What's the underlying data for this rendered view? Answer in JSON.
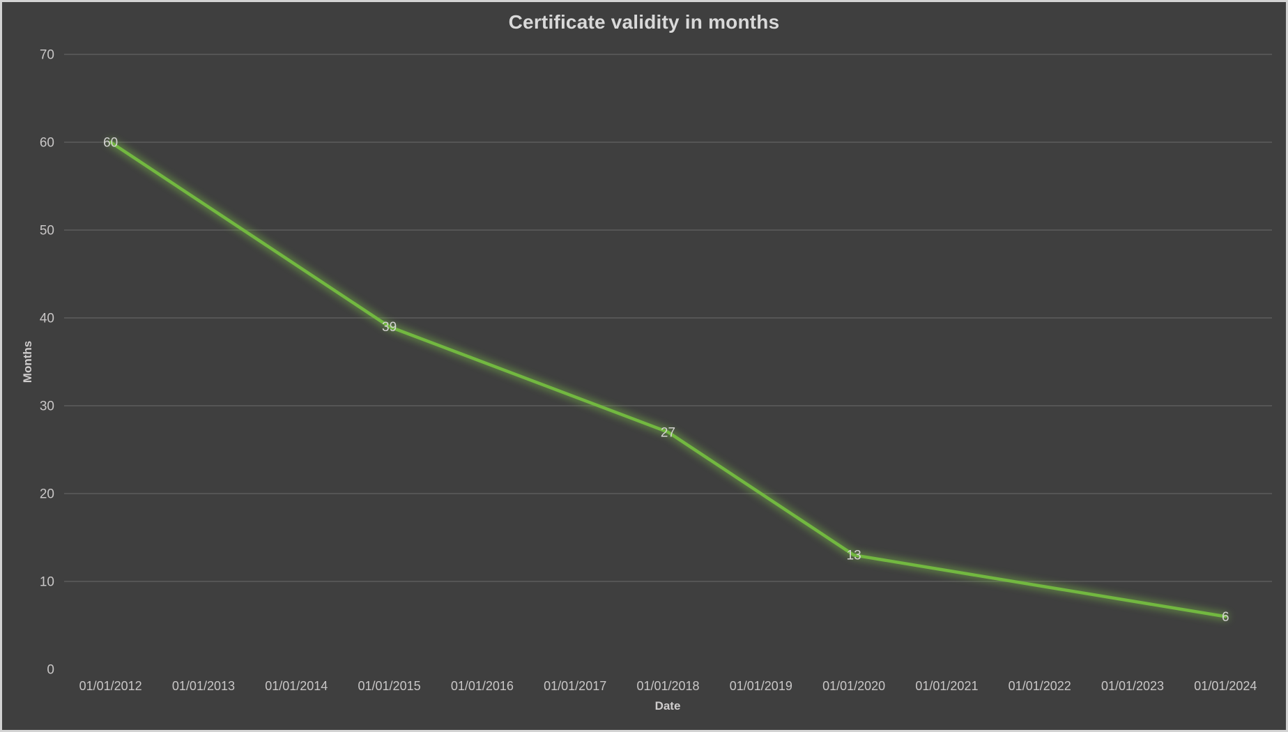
{
  "window": {
    "background_color": "#3f3f3f",
    "border_color": "#d3d3d3"
  },
  "chart_data": {
    "type": "line",
    "title": "Certificate validity in months",
    "xlabel": "Date",
    "ylabel": "Months",
    "x_tick_labels": [
      "01/01/2012",
      "01/01/2013",
      "01/01/2014",
      "01/01/2015",
      "01/01/2016",
      "01/01/2017",
      "01/01/2018",
      "01/01/2019",
      "01/01/2020",
      "01/01/2021",
      "01/01/2022",
      "01/01/2023",
      "01/01/2024"
    ],
    "y_ticks": [
      0,
      10,
      20,
      30,
      40,
      50,
      60,
      70
    ],
    "ylim": [
      0,
      70
    ],
    "grid": true,
    "legend": false,
    "data_labels_shown": true,
    "points": [
      {
        "x": "01/01/2012",
        "y": 60
      },
      {
        "x": "01/01/2015",
        "y": 39
      },
      {
        "x": "01/01/2018",
        "y": 27
      },
      {
        "x": "01/01/2020",
        "y": 13
      },
      {
        "x": "01/01/2024",
        "y": 6
      }
    ],
    "colors": {
      "line": "#72b840",
      "glow": "#7ec14a",
      "gridline": "#555555",
      "title_text": "#d9d9d9",
      "tick_text": "#c9c7c7",
      "axis_title_text": "#cfcdcd",
      "data_label_text": "#d4d2d2"
    }
  }
}
